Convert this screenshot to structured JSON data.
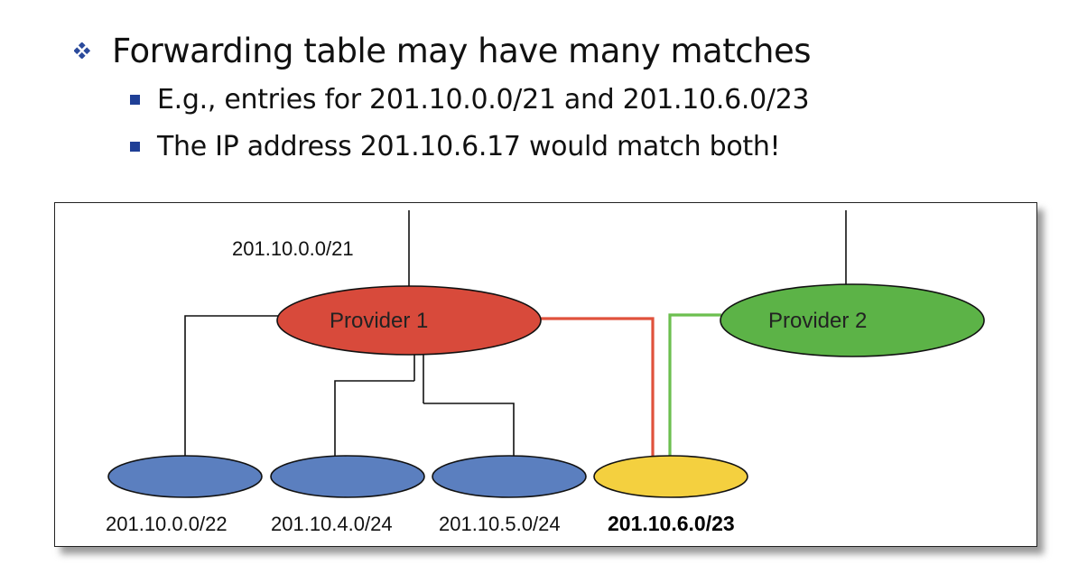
{
  "bullets": {
    "main": "Forwarding table may have many matches",
    "sub": [
      "E.g., entries for 201.10.0.0/21 and 201.10.6.0/23",
      "The IP address 201.10.6.17 would match both!"
    ],
    "main_icon": "diamond-bullet-icon",
    "sub_icon": "square-bullet-icon"
  },
  "diagram": {
    "top_prefix": "201.10.0.0/21",
    "provider1": "Provider 1",
    "provider2": "Provider 2",
    "customers": [
      "201.10.0.0/22",
      "201.10.4.0/24",
      "201.10.5.0/24",
      "201.10.6.0/23"
    ],
    "colors": {
      "provider1": "#d84a3b",
      "provider2": "#5cb347",
      "customer": "#5b7fbf",
      "highlight_customer": "#f4d03f",
      "link_red": "#e0523c",
      "link_green": "#6cbf4f"
    }
  }
}
